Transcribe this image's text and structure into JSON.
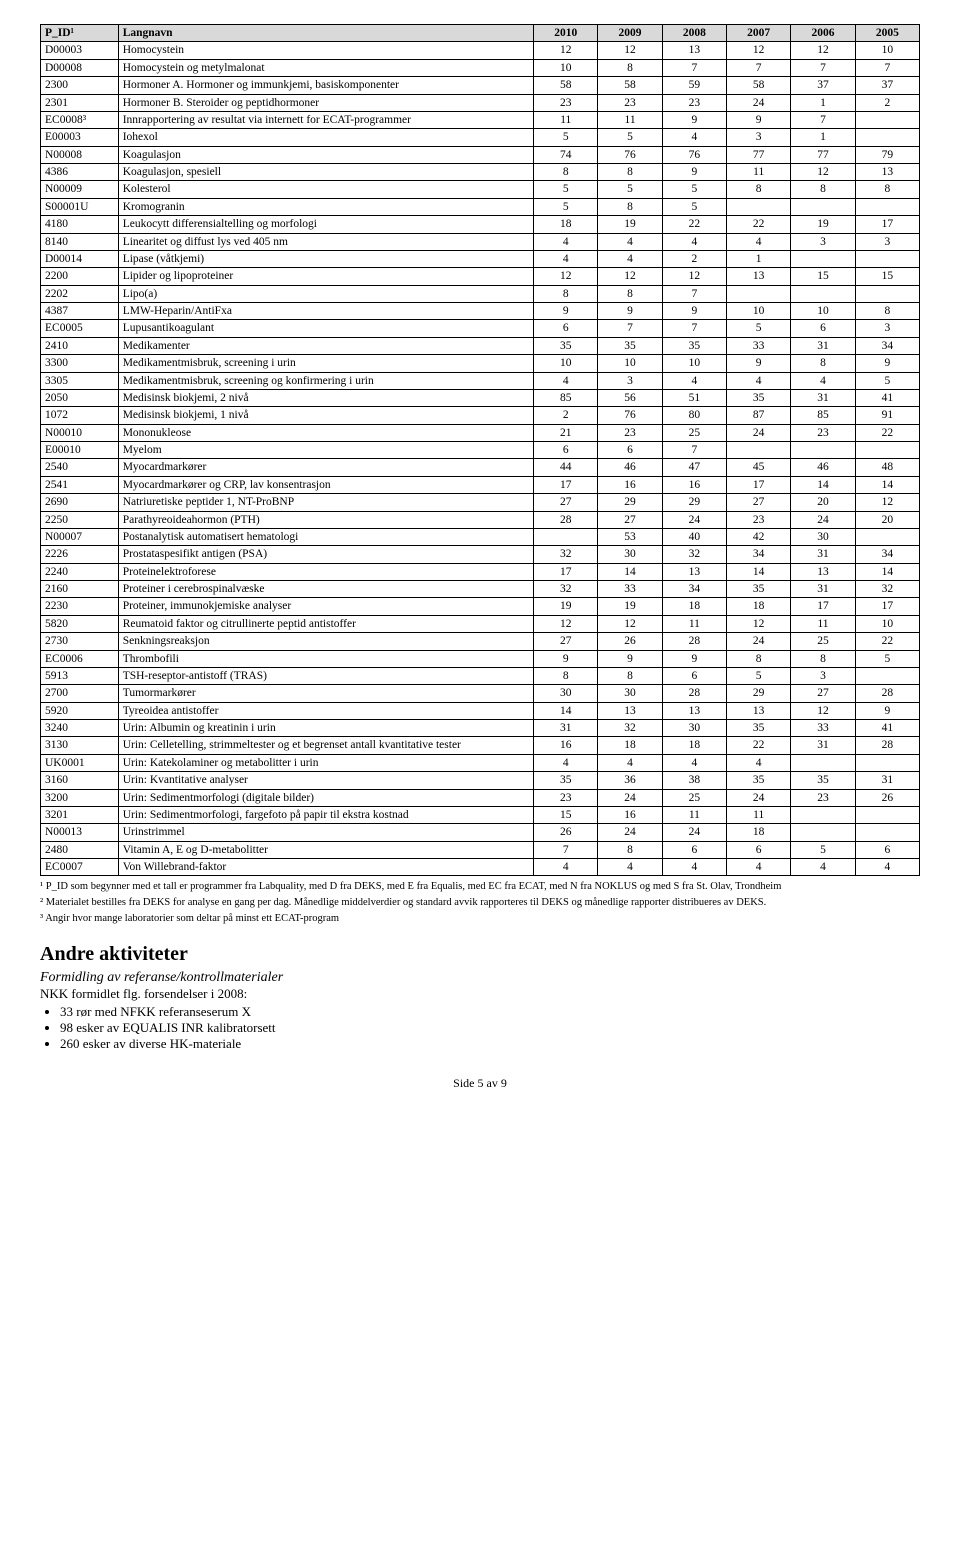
{
  "table": {
    "columns": [
      "P_ID¹",
      "Langnavn",
      "2010",
      "2009",
      "2008",
      "2007",
      "2006",
      "2005"
    ],
    "header_bg": "#d9d9d9",
    "border_color": "#000000",
    "font_size": 11.5,
    "rows": [
      [
        "D00003",
        "Homocystein",
        "12",
        "12",
        "13",
        "12",
        "12",
        "10"
      ],
      [
        "D00008",
        "Homocystein og metylmalonat",
        "10",
        "8",
        "7",
        "7",
        "7",
        "7"
      ],
      [
        "2300",
        "Hormoner A. Hormoner og immunkjemi, basiskomponenter",
        "58",
        "58",
        "59",
        "58",
        "37",
        "37"
      ],
      [
        "2301",
        "Hormoner B. Steroider og peptidhormoner",
        "23",
        "23",
        "23",
        "24",
        "1",
        "2"
      ],
      [
        "EC0008³",
        "Innrapportering av resultat via internett for ECAT-programmer",
        "11",
        "11",
        "9",
        "9",
        "7",
        ""
      ],
      [
        "E00003",
        "Iohexol",
        "5",
        "5",
        "4",
        "3",
        "1",
        ""
      ],
      [
        "N00008",
        "Koagulasjon",
        "74",
        "76",
        "76",
        "77",
        "77",
        "79"
      ],
      [
        "4386",
        "Koagulasjon, spesiell",
        "8",
        "8",
        "9",
        "11",
        "12",
        "13"
      ],
      [
        "N00009",
        "Kolesterol",
        "5",
        "5",
        "5",
        "8",
        "8",
        "8"
      ],
      [
        "S00001U",
        "Kromogranin",
        "5",
        "8",
        "5",
        "",
        "",
        ""
      ],
      [
        "4180",
        "Leukocytt differensialtelling og morfologi",
        "18",
        "19",
        "22",
        "22",
        "19",
        "17"
      ],
      [
        "8140",
        "Linearitet og diffust lys ved 405 nm",
        "4",
        "4",
        "4",
        "4",
        "3",
        "3"
      ],
      [
        "D00014",
        "Lipase (våtkjemi)",
        "4",
        "4",
        "2",
        "1",
        "",
        ""
      ],
      [
        "2200",
        "Lipider og lipoproteiner",
        "12",
        "12",
        "12",
        "13",
        "15",
        "15"
      ],
      [
        "2202",
        "Lipo(a)",
        "8",
        "8",
        "7",
        "",
        "",
        ""
      ],
      [
        "4387",
        "LMW-Heparin/AntiFxa",
        "9",
        "9",
        "9",
        "10",
        "10",
        "8"
      ],
      [
        "EC0005",
        "Lupusantikoagulant",
        "6",
        "7",
        "7",
        "5",
        "6",
        "3"
      ],
      [
        "2410",
        "Medikamenter",
        "35",
        "35",
        "35",
        "33",
        "31",
        "34"
      ],
      [
        "3300",
        "Medikamentmisbruk, screening i urin",
        "10",
        "10",
        "10",
        "9",
        "8",
        "9"
      ],
      [
        "3305",
        "Medikamentmisbruk, screening og konfirmering i urin",
        "4",
        "3",
        "4",
        "4",
        "4",
        "5"
      ],
      [
        "2050",
        "Medisinsk biokjemi, 2 nivå",
        "85",
        "56",
        "51",
        "35",
        "31",
        "41"
      ],
      [
        "1072",
        "Medisinsk biokjemi, 1 nivå",
        "2",
        "76",
        "80",
        "87",
        "85",
        "91"
      ],
      [
        "N00010",
        "Mononukleose",
        "21",
        "23",
        "25",
        "24",
        "23",
        "22"
      ],
      [
        "E00010",
        "Myelom",
        "6",
        "6",
        "7",
        "",
        "",
        ""
      ],
      [
        "2540",
        "Myocardmarkører",
        "44",
        "46",
        "47",
        "45",
        "46",
        "48"
      ],
      [
        "2541",
        "Myocardmarkører og CRP, lav konsentrasjon",
        "17",
        "16",
        "16",
        "17",
        "14",
        "14"
      ],
      [
        "2690",
        "Natriuretiske peptider 1, NT-ProBNP",
        "27",
        "29",
        "29",
        "27",
        "20",
        "12"
      ],
      [
        "2250",
        "Parathyreoideahormon (PTH)",
        "28",
        "27",
        "24",
        "23",
        "24",
        "20"
      ],
      [
        "N00007",
        "Postanalytisk automatisert hematologi",
        "",
        "53",
        "40",
        "42",
        "30",
        ""
      ],
      [
        "2226",
        "Prostataspesifikt antigen (PSA)",
        "32",
        "30",
        "32",
        "34",
        "31",
        "34"
      ],
      [
        "2240",
        "Proteinelektroforese",
        "17",
        "14",
        "13",
        "14",
        "13",
        "14"
      ],
      [
        "2160",
        "Proteiner i cerebrospinalvæske",
        "32",
        "33",
        "34",
        "35",
        "31",
        "32"
      ],
      [
        "2230",
        "Proteiner, immunokjemiske analyser",
        "19",
        "19",
        "18",
        "18",
        "17",
        "17"
      ],
      [
        "5820",
        "Reumatoid faktor og citrullinerte peptid antistoffer",
        "12",
        "12",
        "11",
        "12",
        "11",
        "10"
      ],
      [
        "2730",
        "Senkningsreaksjon",
        "27",
        "26",
        "28",
        "24",
        "25",
        "22"
      ],
      [
        "EC0006",
        "Thrombofili",
        "9",
        "9",
        "9",
        "8",
        "8",
        "5"
      ],
      [
        "5913",
        "TSH-reseptor-antistoff (TRAS)",
        "8",
        "8",
        "6",
        "5",
        "3",
        ""
      ],
      [
        "2700",
        "Tumormarkører",
        "30",
        "30",
        "28",
        "29",
        "27",
        "28"
      ],
      [
        "5920",
        "Tyreoidea antistoffer",
        "14",
        "13",
        "13",
        "13",
        "12",
        "9"
      ],
      [
        "3240",
        "Urin: Albumin og kreatinin i urin",
        "31",
        "32",
        "30",
        "35",
        "33",
        "41"
      ],
      [
        "3130",
        "Urin: Celletelling, strimmeltester og et begrenset antall kvantitative tester",
        "16",
        "18",
        "18",
        "22",
        "31",
        "28"
      ],
      [
        "UK0001",
        "Urin: Katekolaminer og metabolitter i urin",
        "4",
        "4",
        "4",
        "4",
        "",
        ""
      ],
      [
        "3160",
        "Urin: Kvantitative analyser",
        "35",
        "36",
        "38",
        "35",
        "35",
        "31"
      ],
      [
        "3200",
        "Urin: Sedimentmorfologi (digitale bilder)",
        "23",
        "24",
        "25",
        "24",
        "23",
        "26"
      ],
      [
        "3201",
        "Urin: Sedimentmorfologi, fargefoto på papir til ekstra kostnad",
        "15",
        "16",
        "11",
        "11",
        "",
        ""
      ],
      [
        "N00013",
        "Urinstrimmel",
        "26",
        "24",
        "24",
        "18",
        "",
        ""
      ],
      [
        "2480",
        "Vitamin A, E og D-metabolitter",
        "7",
        "8",
        "6",
        "6",
        "5",
        "6"
      ],
      [
        "EC0007",
        "Von Willebrand-faktor",
        "4",
        "4",
        "4",
        "4",
        "4",
        "4"
      ]
    ]
  },
  "footnotes": [
    "¹ P_ID som begynner med et tall er programmer fra Labquality, med D fra DEKS, med E fra Equalis, med EC fra ECAT, med N fra NOKLUS og med S fra St. Olav, Trondheim",
    "² Materialet bestilles fra DEKS for analyse en gang per dag. Månedlige middelverdier og standard avvik rapporteres til DEKS og månedlige rapporter distribueres av DEKS.",
    "³ Angir hvor mange laboratorier som deltar på minst ett ECAT-program"
  ],
  "section_heading": "Andre aktiviteter",
  "subtitle": "Formidling av referanse/kontrollmaterialer",
  "intro_line": "NKK formidlet flg. forsendelser i 2008:",
  "bullets": [
    "33 rør med NFKK referanseserum X",
    "98 esker av EQUALIS INR kalibratorsett",
    "260 esker av diverse HK-materiale"
  ],
  "page_label": "Side 5 av 9"
}
